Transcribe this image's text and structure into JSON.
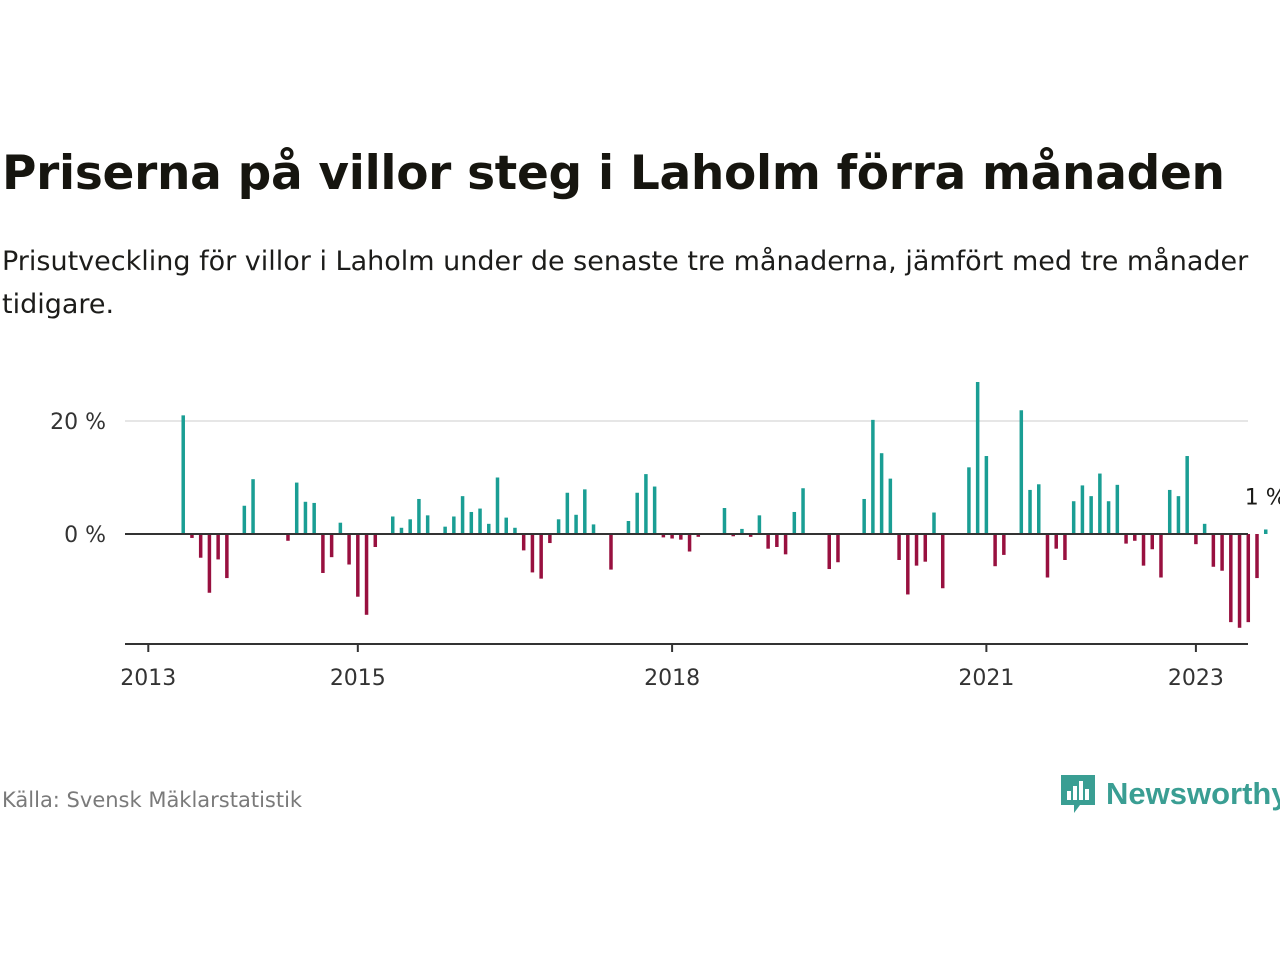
{
  "title": "Priserna på villor steg i Laholm förra månaden",
  "subtitle": "Prisutveckling för villor i Laholm under de senaste tre månaderna, jämfört med tre månader tidigare.",
  "source": "Källa: Svensk Mäklarstatistik",
  "brand": {
    "name": "Newsworthy",
    "icon": "newsworthy-chart-icon",
    "color": "#3a9e93"
  },
  "colors": {
    "positive": "#1a9e94",
    "negative": "#98103f",
    "zero_line": "#333333",
    "grid": "#dddddd",
    "axis": "#333333"
  },
  "chart_data": {
    "type": "bar",
    "title": "Priserna på villor steg i Laholm förra månaden",
    "xlabel": "",
    "ylabel": "",
    "x_start": "2013-01",
    "x_ticks": [
      "2013",
      "2015",
      "2018",
      "2021",
      "2023"
    ],
    "y_ticks": [
      {
        "value": 0,
        "label": "0 %"
      },
      {
        "value": 20,
        "label": "20 %"
      }
    ],
    "ylim": [
      -19.5,
      28
    ],
    "grid": true,
    "annotation": {
      "text": "1 %",
      "target": "last"
    },
    "values": [
      null,
      null,
      null,
      null,
      21,
      -0.7,
      -4.2,
      -10.4,
      -4.5,
      -7.8,
      null,
      5,
      9.7,
      null,
      null,
      null,
      -1.2,
      9.1,
      5.7,
      5.5,
      -6.9,
      -4.1,
      2,
      -5.4,
      -11.1,
      -14.3,
      -2.3,
      null,
      3.1,
      1.1,
      2.6,
      6.2,
      3.3,
      null,
      1.3,
      3.1,
      6.7,
      3.9,
      4.5,
      1.8,
      10,
      2.9,
      1.1,
      -2.9,
      -6.8,
      -7.9,
      -1.6,
      2.6,
      7.3,
      3.4,
      7.9,
      1.7,
      null,
      -6.3,
      null,
      2.3,
      7.3,
      10.6,
      8.4,
      -0.6,
      -0.8,
      -1,
      -3.1,
      -0.5,
      null,
      null,
      4.6,
      -0.4,
      0.9,
      -0.5,
      3.3,
      -2.6,
      -2.3,
      -3.6,
      3.9,
      8.1,
      null,
      null,
      -6.2,
      -5,
      null,
      null,
      6.2,
      20.2,
      14.3,
      9.8,
      -4.6,
      -10.7,
      -5.6,
      -4.9,
      3.8,
      -9.6,
      null,
      null,
      11.8,
      26.9,
      13.8,
      -5.7,
      -3.7,
      null,
      21.9,
      7.8,
      8.8,
      -7.7,
      -2.6,
      -4.6,
      5.8,
      8.6,
      6.7,
      10.7,
      5.8,
      8.7,
      -1.7,
      -1.2,
      -5.6,
      -2.7,
      -7.7,
      7.8,
      6.7,
      13.8,
      -1.8,
      1.8,
      -5.8,
      -6.5,
      -15.6,
      -16.6,
      -15.6,
      -7.8,
      0.8
    ]
  }
}
